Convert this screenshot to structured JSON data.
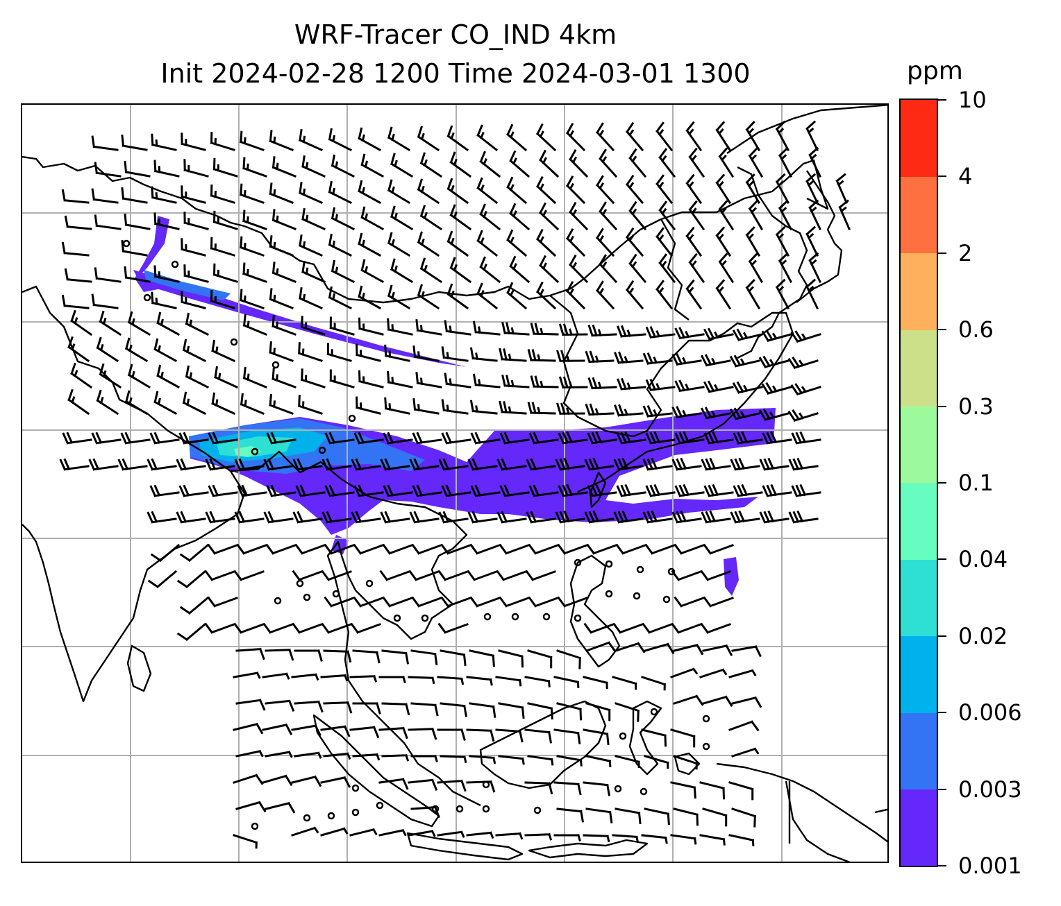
{
  "title": {
    "line1": "WRF-Tracer CO_IND 4km",
    "line2": "Init 2024-02-28 1200 Time 2024-03-01 1300"
  },
  "colorbar": {
    "unit": "ppm",
    "levels": [
      "0.001",
      "0.003",
      "0.006",
      "0.02",
      "0.04",
      "0.1",
      "0.3",
      "0.6",
      "2",
      "4",
      "10"
    ],
    "colors": [
      "#6428fa",
      "#3274f3",
      "#00b2ec",
      "#2ee0d4",
      "#68fdc0",
      "#9cfa9c",
      "#cce08a",
      "#ffb05c",
      "#ff7040",
      "#ff2a14"
    ]
  },
  "map": {
    "grid_color": "#b0b0b0",
    "coast_color": "#000000",
    "barb_color": "#000000"
  }
}
